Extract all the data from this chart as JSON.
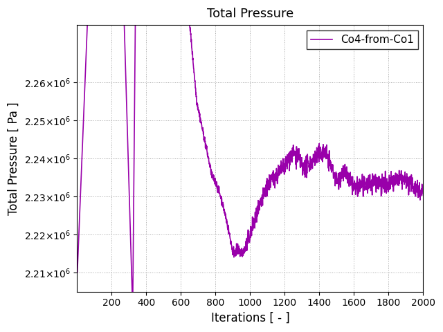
{
  "title": "Total Pressure",
  "xlabel": "Iterations [ - ]",
  "ylabel": "Total Pressure [ Pa ]",
  "legend_label": "Co4-from-Co1",
  "line_color": "#9900aa",
  "xlim": [
    0,
    2000
  ],
  "ylim": [
    2205000.0,
    2275000.0
  ],
  "xticks": [
    200,
    400,
    600,
    800,
    1000,
    1200,
    1400,
    1600,
    1800,
    2000
  ],
  "yticks": [
    2210000.0,
    2220000.0,
    2230000.0,
    2240000.0,
    2250000.0,
    2260000.0
  ],
  "grid": true,
  "background_color": "#ffffff",
  "seed": 42
}
